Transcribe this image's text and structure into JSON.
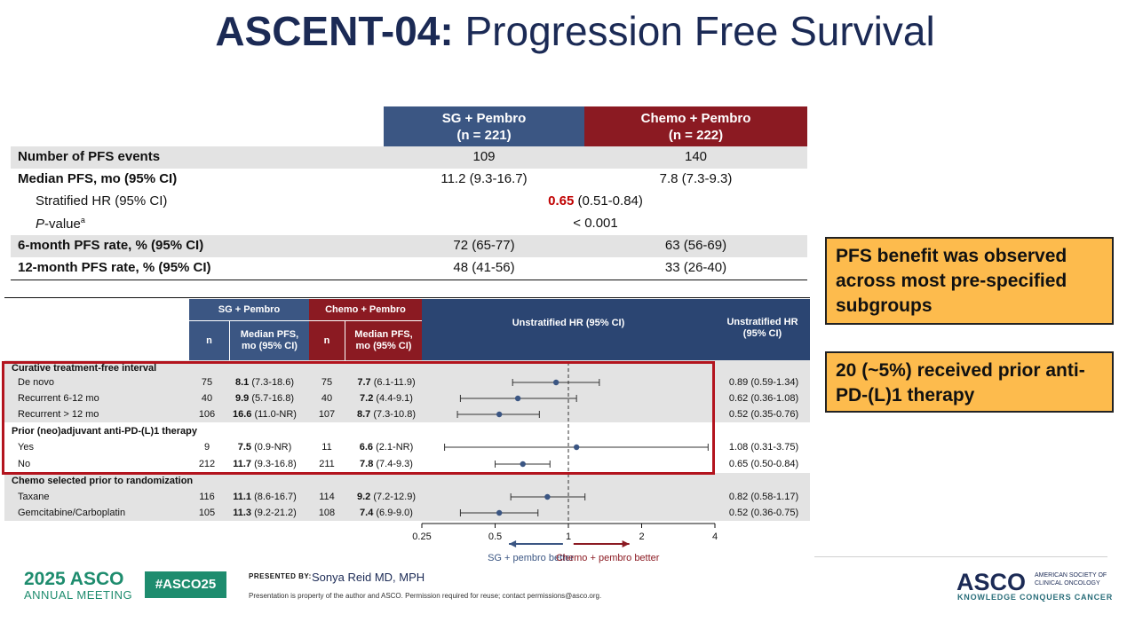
{
  "title": {
    "bold": "ASCENT-04:",
    "rest": " Progression Free Survival"
  },
  "summary_table": {
    "col1": {
      "line1": "SG + Pembro",
      "line2": "(n = 221)"
    },
    "col2": {
      "line1": "Chemo + Pembro",
      "line2": "(n = 222)"
    },
    "rows": {
      "events": {
        "label": "Number of PFS events",
        "v1": "109",
        "v2": "140"
      },
      "median": {
        "label": "Median PFS, mo (95% CI)",
        "v1": "11.2 (9.3-16.7)",
        "v2": "7.8 (7.3-9.3)"
      },
      "hr": {
        "label": "Stratified HR (95% CI)",
        "value": "0.65",
        "ci": " (0.51-0.84)"
      },
      "pval": {
        "label": "P",
        "label_rest": "-value",
        "sup": "a",
        "value": "< 0.001"
      },
      "six": {
        "label": "6-month PFS rate, % (95% CI)",
        "v1": "72 (65-77)",
        "v2": "63 (56-69)"
      },
      "twelve": {
        "label": "12-month PFS rate, % (95% CI)",
        "v1": "48 (41-56)",
        "v2": "33 (26-40)"
      }
    }
  },
  "callouts": {
    "first": "PFS benefit was observed across most pre-specified subgroups",
    "second": "20 (~5%) received prior anti-PD-(L)1 therapy"
  },
  "forest": {
    "headers": {
      "sg": "SG + Pembro",
      "chemo": "Chemo + Pembro",
      "n": "n",
      "median1": "Median PFS,",
      "median2": "mo (95% CI)",
      "hr_ci": "Unstratified HR (95% CI)",
      "hr1": "Unstratified HR",
      "hr2": "(95% CI)"
    },
    "groups": {
      "g1": "Curative treatment-free interval",
      "g2": "Prior (neo)adjuvant anti-PD-(L)1 therapy",
      "g3": "Chemo selected prior to randomization"
    },
    "rows": [
      {
        "label": "De novo",
        "n1": "75",
        "m1b": "8.1",
        "m1": " (7.3-18.6)",
        "n2": "75",
        "m2b": "7.7",
        "m2": " (6.1-11.9)",
        "hr": "0.89 (0.59-1.34)"
      },
      {
        "label": "Recurrent 6-12 mo",
        "n1": "40",
        "m1b": "9.9",
        "m1": " (5.7-16.8)",
        "n2": "40",
        "m2b": "7.2",
        "m2": " (4.4-9.1)",
        "hr": "0.62 (0.36-1.08)"
      },
      {
        "label": "Recurrent > 12 mo",
        "n1": "106",
        "m1b": "16.6",
        "m1": " (11.0-NR)",
        "n2": "107",
        "m2b": "8.7",
        "m2": " (7.3-10.8)",
        "hr": "0.52 (0.35-0.76)"
      },
      {
        "label": "Yes",
        "n1": "9",
        "m1b": "7.5",
        "m1": " (0.9-NR)",
        "n2": "11",
        "m2b": "6.6",
        "m2": " (2.1-NR)",
        "hr": "1.08 (0.31-3.75)"
      },
      {
        "label": "No",
        "n1": "212",
        "m1b": "11.7",
        "m1": " (9.3-16.8)",
        "n2": "211",
        "m2b": "7.8",
        "m2": " (7.4-9.3)",
        "hr": "0.65 (0.50-0.84)"
      },
      {
        "label": "Taxane",
        "n1": "116",
        "m1b": "11.1",
        "m1": " (8.6-16.7)",
        "n2": "114",
        "m2b": "9.2",
        "m2": " (7.2-12.9)",
        "hr": "0.82 (0.58-1.17)"
      },
      {
        "label": "Gemcitabine/Carboplatin",
        "n1": "105",
        "m1b": "11.3",
        "m1": " (9.2-21.2)",
        "n2": "108",
        "m2b": "7.4",
        "m2": " (6.9-9.0)",
        "hr": "0.52 (0.36-0.75)"
      }
    ],
    "axis_ticks": [
      "0.25",
      "0.5",
      "1",
      "2",
      "4"
    ],
    "favors_left": "SG + pembro better",
    "favors_right": "Chemo + pembro better",
    "colors": {
      "point": "#3b5683",
      "left_arrow": "#3b5683",
      "right_arrow": "#8b1a22"
    }
  },
  "chart_data": {
    "type": "scatter",
    "scale": "log2",
    "xlim": [
      0.25,
      4
    ],
    "reference_line": 1,
    "series": [
      {
        "category": "De novo",
        "hr": 0.89,
        "lo": 0.59,
        "hi": 1.34
      },
      {
        "category": "Recurrent 6-12 mo",
        "hr": 0.62,
        "lo": 0.36,
        "hi": 1.08
      },
      {
        "category": "Recurrent > 12 mo",
        "hr": 0.52,
        "lo": 0.35,
        "hi": 0.76
      },
      {
        "category": "Yes",
        "hr": 1.08,
        "lo": 0.31,
        "hi": 3.75
      },
      {
        "category": "No",
        "hr": 0.65,
        "lo": 0.5,
        "hi": 0.84
      },
      {
        "category": "Taxane",
        "hr": 0.82,
        "lo": 0.58,
        "hi": 1.17
      },
      {
        "category": "Gemcitabine/Carboplatin",
        "hr": 0.52,
        "lo": 0.36,
        "hi": 0.75
      }
    ]
  },
  "footer": {
    "meeting_year": "2025 ASCO",
    "meeting_name": "ANNUAL MEETING",
    "hashtag": "#ASCO25",
    "presented_by": "PRESENTED BY:",
    "presenter": "Sonya Reid MD, MPH",
    "note": "Presentation is property of the author and ASCO. Permission required for reuse; contact permissions@asco.org.",
    "logo": "ASCO",
    "society": "AMERICAN SOCIETY OF CLINICAL ONCOLOGY",
    "tagline": "KNOWLEDGE CONQUERS CANCER"
  }
}
